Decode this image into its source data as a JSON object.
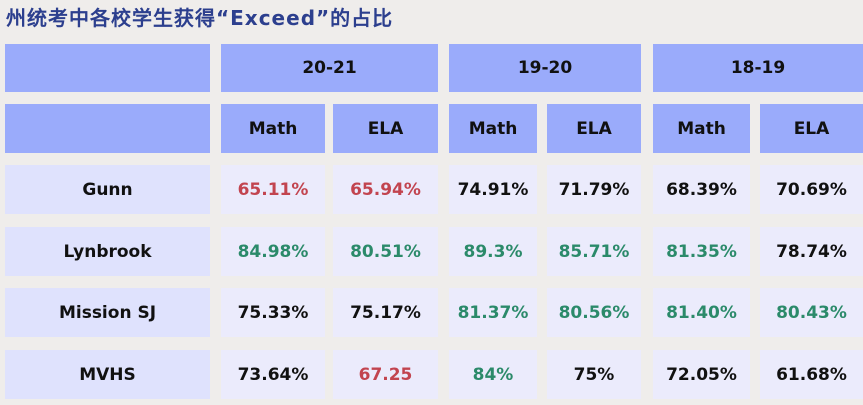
{
  "header": {
    "title": "州统考中各校学生获得“Exceed”的占比"
  },
  "table": {
    "years": [
      {
        "label": "20-21",
        "subjects": [
          "Math",
          "ELA"
        ]
      },
      {
        "label": "19-20",
        "subjects": [
          "Math",
          "ELA"
        ]
      },
      {
        "label": "18-19",
        "subjects": [
          "Math",
          "ELA"
        ]
      }
    ],
    "rows": [
      {
        "school": "Gunn",
        "values": [
          "65.11%",
          "65.94%",
          "74.91%",
          "71.79%",
          "68.39%",
          "70.69%"
        ],
        "colors": [
          "#c2444f",
          "#c2444f",
          "#111111",
          "#111111",
          "#111111",
          "#111111"
        ]
      },
      {
        "school": "Lynbrook",
        "values": [
          "84.98%",
          "80.51%",
          "89.3%",
          "85.71%",
          "81.35%",
          "78.74%"
        ],
        "colors": [
          "#2b8a6a",
          "#2b8a6a",
          "#2b8a6a",
          "#2b8a6a",
          "#2b8a6a",
          "#111111"
        ]
      },
      {
        "school": "Mission SJ",
        "values": [
          "75.33%",
          "75.17%",
          "81.37%",
          "80.56%",
          "81.40%",
          "80.43%"
        ],
        "colors": [
          "#111111",
          "#111111",
          "#2b8a6a",
          "#2b8a6a",
          "#2b8a6a",
          "#2b8a6a"
        ]
      },
      {
        "school": "MVHS",
        "values": [
          "73.64%",
          "67.25",
          "84%",
          "75%",
          "72.05%",
          "61.68%"
        ],
        "colors": [
          "#111111",
          "#c2444f",
          "#2b8a6a",
          "#111111",
          "#111111",
          "#111111"
        ]
      }
    ]
  }
}
